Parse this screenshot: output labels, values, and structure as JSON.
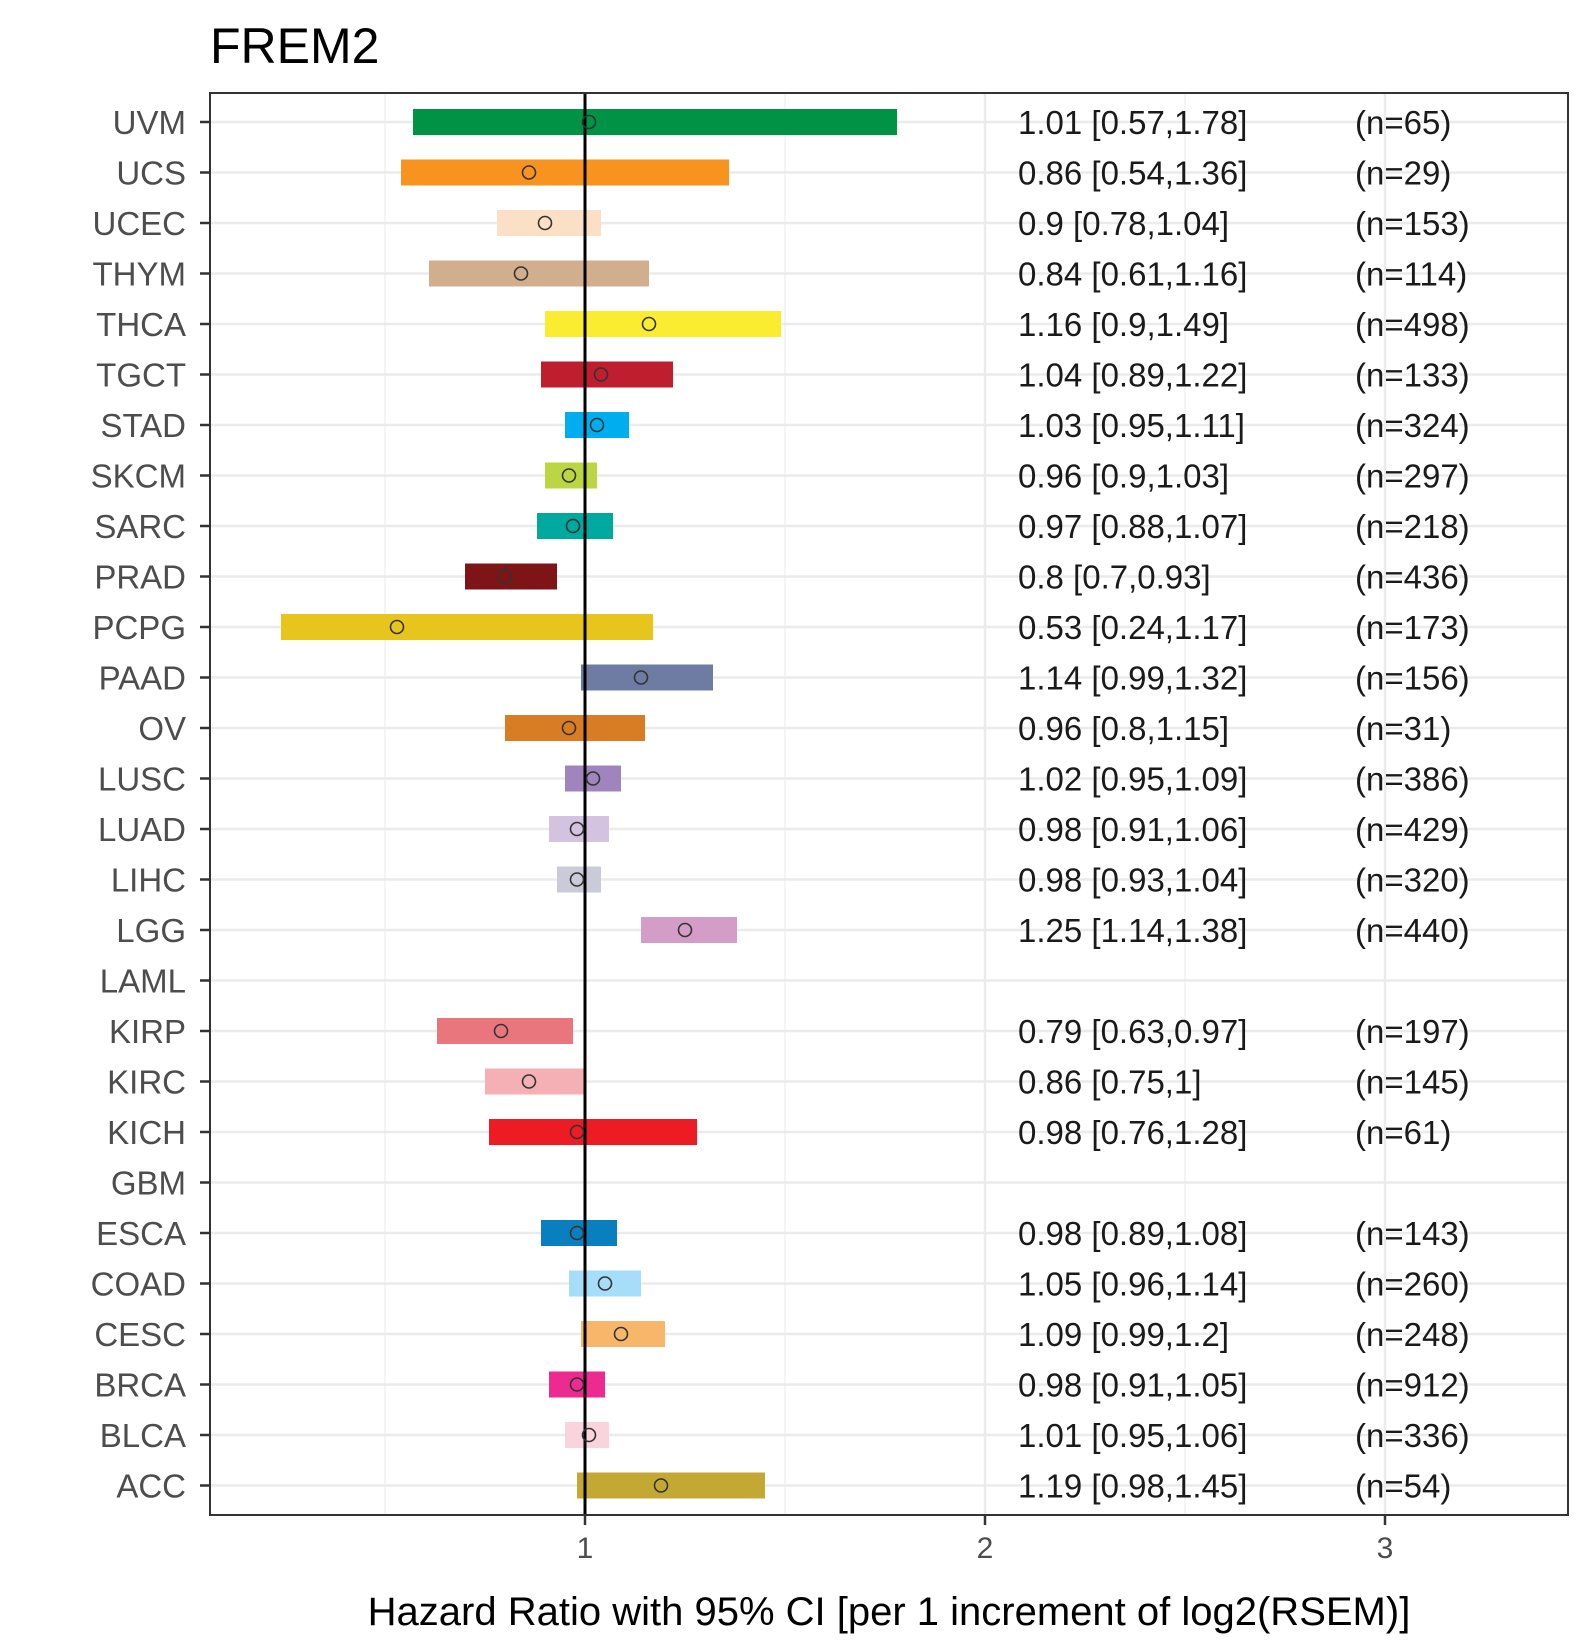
{
  "chart_data": {
    "type": "forest",
    "title": "FREM2",
    "xlabel": "Hazard Ratio with 95% CI [per 1 increment of log2(RSEM)]",
    "ylabel": "",
    "xlim": [
      0.0,
      3.5
    ],
    "xticks": [
      1,
      2,
      3
    ],
    "grid": true,
    "reference_line": 1,
    "rows": [
      {
        "name": "UVM",
        "hr": 1.01,
        "lo": 0.57,
        "hi": 1.78,
        "label": "1.01 [0.57,1.78]",
        "n": "(n=65)",
        "color": "#009245"
      },
      {
        "name": "UCS",
        "hr": 0.86,
        "lo": 0.54,
        "hi": 1.36,
        "label": "0.86 [0.54,1.36]",
        "n": "(n=29)",
        "color": "#F7931E"
      },
      {
        "name": "UCEC",
        "hr": 0.9,
        "lo": 0.78,
        "hi": 1.04,
        "label": "0.9 [0.78,1.04]",
        "n": "(n=153)",
        "color": "#FCE0C6"
      },
      {
        "name": "THYM",
        "hr": 0.84,
        "lo": 0.61,
        "hi": 1.16,
        "label": "0.84 [0.61,1.16]",
        "n": "(n=114)",
        "color": "#D1AE8E"
      },
      {
        "name": "THCA",
        "hr": 1.16,
        "lo": 0.9,
        "hi": 1.49,
        "label": "1.16 [0.9,1.49]",
        "n": "(n=498)",
        "color": "#F9EC31"
      },
      {
        "name": "TGCT",
        "hr": 1.04,
        "lo": 0.89,
        "hi": 1.22,
        "label": "1.04 [0.89,1.22]",
        "n": "(n=133)",
        "color": "#BE1E2D"
      },
      {
        "name": "STAD",
        "hr": 1.03,
        "lo": 0.95,
        "hi": 1.11,
        "label": "1.03 [0.95,1.11]",
        "n": "(n=324)",
        "color": "#00AEEF"
      },
      {
        "name": "SKCM",
        "hr": 0.96,
        "lo": 0.9,
        "hi": 1.03,
        "label": "0.96 [0.9,1.03]",
        "n": "(n=297)",
        "color": "#BBD642"
      },
      {
        "name": "SARC",
        "hr": 0.97,
        "lo": 0.88,
        "hi": 1.07,
        "label": "0.97 [0.88,1.07]",
        "n": "(n=218)",
        "color": "#00A99D"
      },
      {
        "name": "PRAD",
        "hr": 0.8,
        "lo": 0.7,
        "hi": 0.93,
        "label": "0.8 [0.7,0.93]",
        "n": "(n=436)",
        "color": "#7E1416"
      },
      {
        "name": "PCPG",
        "hr": 0.53,
        "lo": 0.24,
        "hi": 1.17,
        "label": "0.53 [0.24,1.17]",
        "n": "(n=173)",
        "color": "#E8C51D"
      },
      {
        "name": "PAAD",
        "hr": 1.14,
        "lo": 0.99,
        "hi": 1.32,
        "label": "1.14 [0.99,1.32]",
        "n": "(n=156)",
        "color": "#6E7BA2"
      },
      {
        "name": "OV",
        "hr": 0.96,
        "lo": 0.8,
        "hi": 1.15,
        "label": "0.96 [0.8,1.15]",
        "n": "(n=31)",
        "color": "#D97D25"
      },
      {
        "name": "LUSC",
        "hr": 1.02,
        "lo": 0.95,
        "hi": 1.09,
        "label": "1.02 [0.95,1.09]",
        "n": "(n=386)",
        "color": "#A084BD"
      },
      {
        "name": "LUAD",
        "hr": 0.98,
        "lo": 0.91,
        "hi": 1.06,
        "label": "0.98 [0.91,1.06]",
        "n": "(n=429)",
        "color": "#D3C3E0"
      },
      {
        "name": "LIHC",
        "hr": 0.98,
        "lo": 0.93,
        "hi": 1.04,
        "label": "0.98 [0.93,1.04]",
        "n": "(n=320)",
        "color": "#CACAD8"
      },
      {
        "name": "LGG",
        "hr": 1.25,
        "lo": 1.14,
        "hi": 1.38,
        "label": "1.25 [1.14,1.38]",
        "n": "(n=440)",
        "color": "#D49DC7"
      },
      {
        "name": "LAML",
        "hr": null,
        "lo": null,
        "hi": null,
        "label": "",
        "n": "",
        "color": "#000000"
      },
      {
        "name": "KIRP",
        "hr": 0.79,
        "lo": 0.63,
        "hi": 0.97,
        "label": "0.79 [0.63,0.97]",
        "n": "(n=197)",
        "color": "#E9767C"
      },
      {
        "name": "KIRC",
        "hr": 0.86,
        "lo": 0.75,
        "hi": 1,
        "label": "0.86 [0.75,1]",
        "n": "(n=145)",
        "color": "#F5B0B5"
      },
      {
        "name": "KICH",
        "hr": 0.98,
        "lo": 0.76,
        "hi": 1.28,
        "label": "0.98 [0.76,1.28]",
        "n": "(n=61)",
        "color": "#ED1C24"
      },
      {
        "name": "GBM",
        "hr": null,
        "lo": null,
        "hi": null,
        "label": "",
        "n": "",
        "color": "#000000"
      },
      {
        "name": "ESCA",
        "hr": 0.98,
        "lo": 0.89,
        "hi": 1.08,
        "label": "0.98 [0.89,1.08]",
        "n": "(n=143)",
        "color": "#0A7FBF"
      },
      {
        "name": "COAD",
        "hr": 1.05,
        "lo": 0.96,
        "hi": 1.14,
        "label": "1.05 [0.96,1.14]",
        "n": "(n=260)",
        "color": "#A6DDF8"
      },
      {
        "name": "CESC",
        "hr": 1.09,
        "lo": 0.99,
        "hi": 1.2,
        "label": "1.09 [0.99,1.2]",
        "n": "(n=248)",
        "color": "#F6B76B"
      },
      {
        "name": "BRCA",
        "hr": 0.98,
        "lo": 0.91,
        "hi": 1.05,
        "label": "0.98 [0.91,1.05]",
        "n": "(n=912)",
        "color": "#EC2A8F"
      },
      {
        "name": "BLCA",
        "hr": 1.01,
        "lo": 0.95,
        "hi": 1.06,
        "label": "1.01 [0.95,1.06]",
        "n": "(n=336)",
        "color": "#F9D4DC"
      },
      {
        "name": "ACC",
        "hr": 1.19,
        "lo": 0.98,
        "hi": 1.45,
        "label": "1.19 [0.98,1.45]",
        "n": "(n=54)",
        "color": "#C4A834"
      }
    ]
  }
}
